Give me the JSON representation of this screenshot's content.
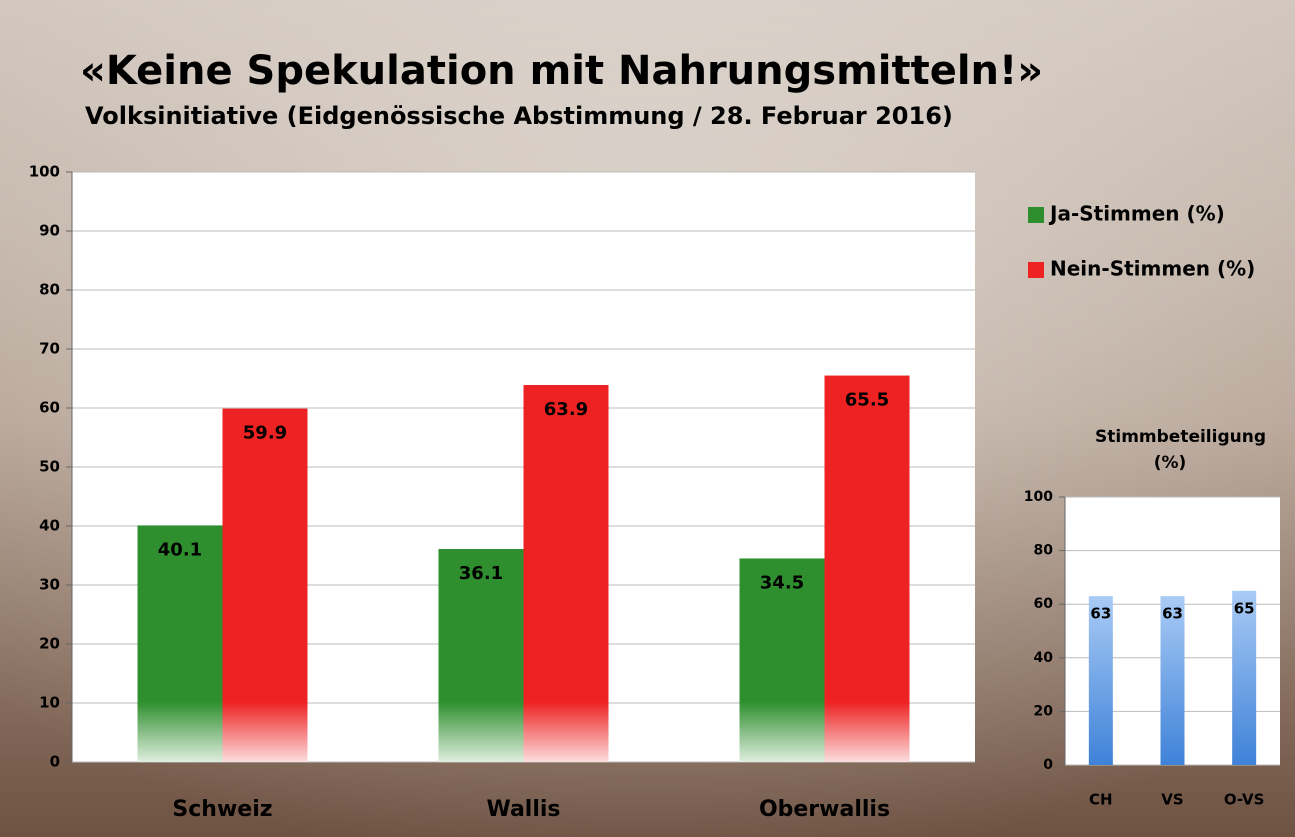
{
  "chart_data": [
    {
      "type": "bar",
      "title": "«Keine Spekulation mit Nahrungsmitteln!»",
      "subtitle": "Volksinitiative (Eidgenössische Abstimmung / 28. Februar 2016)",
      "categories": [
        "Schweiz",
        "Wallis",
        "Oberwallis"
      ],
      "series": [
        {
          "name": "Ja-Stimmen (%)",
          "color": "#2f8f2f",
          "values": [
            40.1,
            36.1,
            34.5
          ]
        },
        {
          "name": "Nein-Stimmen (%)",
          "color": "#ee2222",
          "values": [
            59.9,
            63.9,
            65.5
          ]
        }
      ],
      "ylim": [
        0,
        100
      ],
      "yticks": [
        0,
        10,
        20,
        30,
        40,
        50,
        60,
        70,
        80,
        90,
        100
      ],
      "grid": true
    },
    {
      "type": "bar",
      "title": "Stimmbeteiligung (%)",
      "categories": [
        "CH",
        "VS",
        "O-VS"
      ],
      "series": [
        {
          "color": "#5b9be6",
          "values": [
            63,
            63,
            65
          ]
        }
      ],
      "ylim": [
        0,
        100
      ],
      "yticks": [
        0,
        20,
        40,
        60,
        80,
        100
      ],
      "grid": true
    }
  ]
}
